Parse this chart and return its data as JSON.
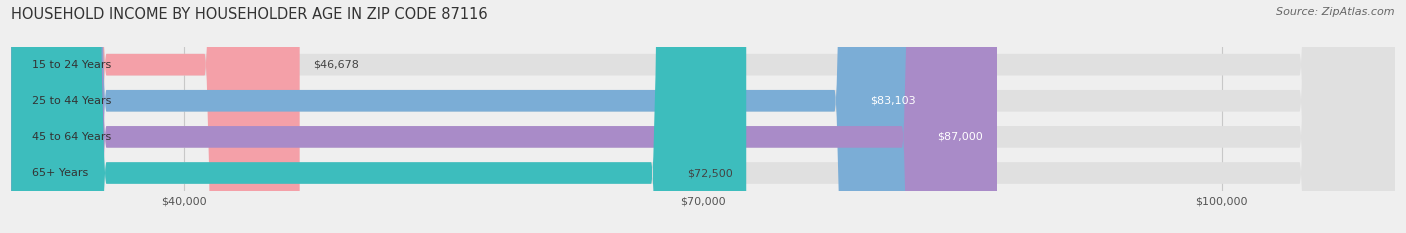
{
  "title": "HOUSEHOLD INCOME BY HOUSEHOLDER AGE IN ZIP CODE 87116",
  "source": "Source: ZipAtlas.com",
  "categories": [
    "15 to 24 Years",
    "25 to 44 Years",
    "45 to 64 Years",
    "65+ Years"
  ],
  "values": [
    46678,
    83103,
    87000,
    72500
  ],
  "bar_colors": [
    "#f4a0a8",
    "#7badd6",
    "#a98bc8",
    "#3dbdbd"
  ],
  "label_colors": [
    "#444444",
    "#ffffff",
    "#ffffff",
    "#444444"
  ],
  "x_min": 30000,
  "x_max": 110000,
  "x_ticks": [
    40000,
    70000,
    100000
  ],
  "x_tick_labels": [
    "$40,000",
    "$70,000",
    "$100,000"
  ],
  "value_labels": [
    "$46,678",
    "$83,103",
    "$87,000",
    "$72,500"
  ],
  "bg_color": "#efefef",
  "bar_bg_color": "#e0e0e0",
  "title_fontsize": 10.5,
  "source_fontsize": 8,
  "label_fontsize": 8,
  "tick_fontsize": 8
}
